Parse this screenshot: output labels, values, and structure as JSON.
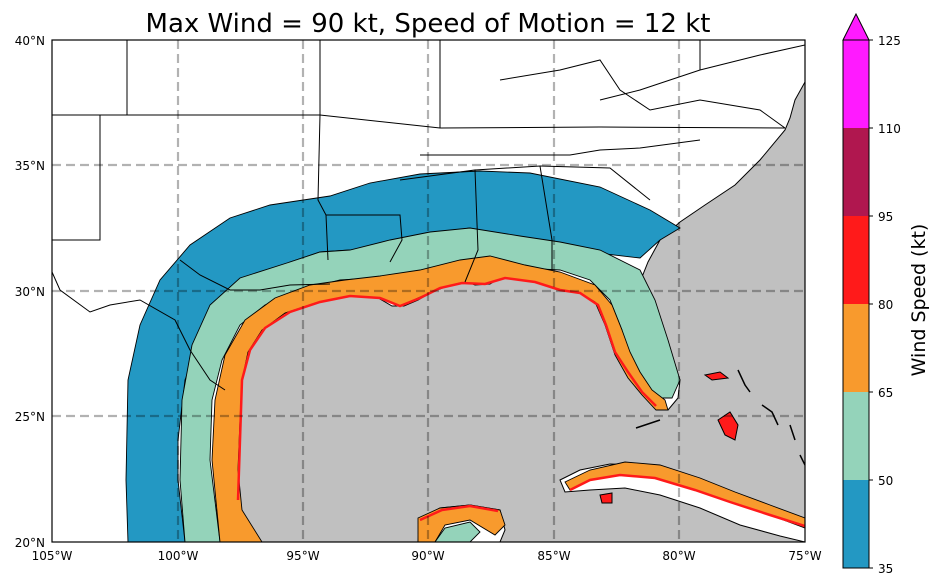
{
  "title": "Max Wind = 90 kt, Speed of Motion = 12 kt",
  "map": {
    "lon_range": [
      -105,
      -75
    ],
    "lat_range": [
      20,
      40
    ],
    "lon_ticks": [
      "105°W",
      "100°W",
      "95°W",
      "90°W",
      "85°W",
      "80°W",
      "75°W"
    ],
    "lat_ticks": [
      "40°N",
      "35°N",
      "30°N",
      "25°N",
      "20°N"
    ],
    "gridlines": "dashed",
    "ocean_color": "#c0c0c0",
    "land_color": "#ffffff"
  },
  "colorbar": {
    "label": "Wind Speed (kt)",
    "ticks": [
      "125",
      "110",
      "95",
      "80",
      "65",
      "50",
      "35"
    ],
    "extend": "max",
    "bands": [
      {
        "from": 35,
        "to": 50,
        "color": "#2398c3"
      },
      {
        "from": 50,
        "to": 65,
        "color": "#94d3ba"
      },
      {
        "from": 65,
        "to": 80,
        "color": "#f89a2d"
      },
      {
        "from": 80,
        "to": 95,
        "color": "#ff1a1a"
      },
      {
        "from": 95,
        "to": 110,
        "color": "#b0174f"
      },
      {
        "from": 110,
        "to": 125,
        "color": "#ff1aff"
      }
    ],
    "extension_color": "#ff1aff"
  },
  "chart_data": {
    "type": "heatmap",
    "title": "Max Wind = 90 kt, Speed of Motion = 12 kt",
    "xlabel": "",
    "ylabel": "",
    "xlim": [
      -105,
      -75
    ],
    "ylim": [
      20,
      40
    ],
    "colorbar_label": "Wind Speed (kt)",
    "levels": [
      35,
      50,
      65,
      80,
      95,
      110,
      125
    ]
  }
}
